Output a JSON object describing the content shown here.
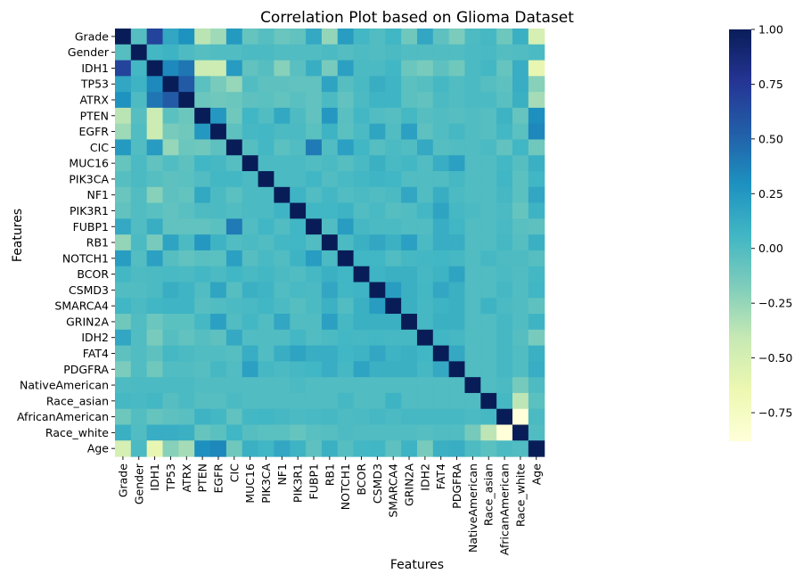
{
  "chart_data": {
    "type": "heatmap",
    "title": "Correlation Plot based on Glioma Dataset",
    "xlabel": "Features",
    "ylabel": "Features",
    "features": [
      "Grade",
      "Gender",
      "IDH1",
      "TP53",
      "ATRX",
      "PTEN",
      "EGFR",
      "CIC",
      "MUC16",
      "PIK3CA",
      "NF1",
      "PIK3R1",
      "FUBP1",
      "RB1",
      "NOTCH1",
      "BCOR",
      "CSMD3",
      "SMARCA4",
      "GRIN2A",
      "IDH2",
      "FAT4",
      "PDGFRA",
      "NativeAmerican",
      "Race_asian",
      "AfricanAmerican",
      "Race_white",
      "Age"
    ],
    "colorbar": {
      "min": -0.88,
      "max": 1.0,
      "ticks": [
        1.0,
        0.75,
        0.5,
        0.25,
        0.0,
        -0.25,
        -0.5,
        -0.75
      ],
      "tick_labels": [
        "1.00",
        "0.75",
        "0.50",
        "0.25",
        "0.00",
        "−0.25",
        "−0.50",
        "−0.75"
      ],
      "colormap": "YlGnBu"
    },
    "matrix": [
      [
        1.0,
        -0.02,
        0.68,
        0.16,
        0.28,
        -0.37,
        -0.28,
        0.24,
        -0.08,
        -0.02,
        -0.09,
        -0.06,
        0.14,
        -0.24,
        0.22,
        0.05,
        0.0,
        0.06,
        -0.12,
        0.16,
        -0.05,
        -0.16,
        0.01,
        0.04,
        -0.11,
        0.1,
        -0.5
      ],
      [
        -0.02,
        1.0,
        0.05,
        0.08,
        0.01,
        -0.02,
        0.0,
        0.0,
        0.02,
        0.02,
        0.0,
        0.0,
        0.0,
        0.02,
        -0.01,
        0.01,
        0.0,
        0.02,
        0.0,
        0.0,
        0.0,
        0.0,
        0.02,
        0.03,
        -0.01,
        0.0,
        0.02
      ],
      [
        0.68,
        0.05,
        1.0,
        0.33,
        0.42,
        -0.45,
        -0.45,
        0.23,
        -0.06,
        -0.02,
        -0.2,
        -0.03,
        0.11,
        -0.15,
        0.2,
        0.02,
        0.02,
        0.06,
        -0.1,
        -0.15,
        -0.05,
        -0.12,
        0.02,
        0.05,
        -0.08,
        0.12,
        -0.62
      ],
      [
        0.16,
        0.08,
        0.33,
        1.0,
        0.55,
        -0.04,
        -0.15,
        -0.25,
        0.0,
        -0.05,
        -0.05,
        -0.06,
        -0.06,
        0.18,
        -0.02,
        0.03,
        0.11,
        0.07,
        -0.04,
        -0.02,
        0.04,
        0.0,
        0.02,
        -0.02,
        -0.05,
        0.12,
        -0.2
      ],
      [
        0.28,
        0.01,
        0.42,
        0.55,
        1.0,
        -0.1,
        -0.12,
        -0.1,
        -0.05,
        -0.04,
        -0.07,
        -0.03,
        -0.06,
        0.02,
        -0.06,
        0.02,
        0.07,
        0.07,
        -0.04,
        -0.06,
        0.02,
        0.0,
        0.02,
        0.02,
        -0.03,
        0.1,
        -0.3
      ],
      [
        -0.37,
        -0.02,
        -0.45,
        -0.04,
        -0.1,
        1.0,
        0.25,
        -0.12,
        0.06,
        0.0,
        0.15,
        0.01,
        -0.06,
        0.25,
        -0.03,
        0.05,
        0.0,
        -0.02,
        0.04,
        -0.02,
        0.0,
        -0.02,
        0.0,
        -0.02,
        0.08,
        -0.08,
        0.3
      ],
      [
        -0.28,
        0.0,
        -0.45,
        -0.15,
        -0.12,
        0.25,
        1.0,
        -0.05,
        0.04,
        0.05,
        0.02,
        0.02,
        -0.04,
        0.08,
        -0.04,
        0.02,
        0.17,
        0.0,
        0.2,
        -0.05,
        0.0,
        0.04,
        0.0,
        -0.02,
        0.05,
        -0.04,
        0.34
      ],
      [
        0.24,
        0.0,
        0.23,
        -0.25,
        -0.1,
        -0.12,
        -0.05,
        1.0,
        -0.02,
        0.05,
        -0.04,
        0.0,
        0.4,
        0.0,
        0.2,
        0.06,
        -0.02,
        0.02,
        0.0,
        0.14,
        -0.02,
        0.0,
        0.0,
        0.02,
        -0.06,
        0.06,
        -0.12
      ],
      [
        -0.08,
        0.02,
        -0.06,
        0.0,
        -0.05,
        0.06,
        0.04,
        -0.02,
        1.0,
        0.02,
        0.02,
        0.02,
        0.0,
        0.02,
        -0.02,
        0.03,
        0.1,
        0.03,
        0.05,
        0.0,
        0.12,
        0.2,
        0.0,
        0.0,
        0.05,
        -0.02,
        0.1
      ],
      [
        -0.02,
        0.02,
        -0.02,
        -0.05,
        -0.04,
        0.0,
        0.05,
        0.05,
        0.02,
        1.0,
        0.02,
        0.02,
        0.06,
        0.0,
        0.03,
        0.05,
        0.07,
        0.06,
        0.0,
        0.0,
        0.0,
        0.04,
        0.0,
        0.0,
        0.06,
        -0.04,
        0.06
      ],
      [
        -0.09,
        0.0,
        -0.2,
        -0.05,
        -0.07,
        0.15,
        0.02,
        -0.04,
        0.02,
        0.02,
        1.0,
        0.07,
        0.0,
        0.05,
        0.0,
        0.02,
        0.0,
        0.02,
        0.16,
        0.0,
        0.11,
        0.02,
        0.0,
        0.0,
        0.04,
        -0.04,
        0.16
      ],
      [
        -0.06,
        0.0,
        -0.03,
        -0.06,
        -0.03,
        0.01,
        0.02,
        0.0,
        0.02,
        0.02,
        0.07,
        1.0,
        0.06,
        0.06,
        0.08,
        0.0,
        0.03,
        -0.02,
        0.0,
        0.05,
        0.18,
        0.04,
        0.02,
        0.0,
        0.02,
        -0.08,
        0.08
      ],
      [
        0.14,
        0.0,
        0.11,
        -0.06,
        -0.06,
        -0.06,
        -0.04,
        0.4,
        0.0,
        0.06,
        0.0,
        0.06,
        1.0,
        0.0,
        0.22,
        0.04,
        0.02,
        0.02,
        0.0,
        0.0,
        0.12,
        0.06,
        0.0,
        0.0,
        0.03,
        -0.03,
        -0.05
      ],
      [
        -0.24,
        0.02,
        -0.15,
        0.18,
        0.02,
        0.25,
        0.08,
        0.0,
        0.02,
        0.0,
        0.05,
        0.06,
        0.0,
        1.0,
        0.02,
        0.1,
        0.16,
        0.09,
        0.2,
        0.02,
        0.12,
        0.12,
        0.0,
        0.0,
        0.04,
        -0.02,
        0.1
      ],
      [
        0.22,
        -0.01,
        0.2,
        -0.02,
        -0.06,
        -0.03,
        -0.04,
        0.2,
        -0.02,
        0.03,
        0.0,
        0.08,
        0.22,
        0.02,
        1.0,
        0.06,
        0.06,
        0.0,
        0.04,
        0.05,
        0.06,
        0.04,
        0.0,
        0.04,
        0.01,
        0.01,
        -0.02
      ],
      [
        0.05,
        0.01,
        0.02,
        0.03,
        0.02,
        0.05,
        0.02,
        0.06,
        0.03,
        0.05,
        0.02,
        0.0,
        0.04,
        0.1,
        0.06,
        1.0,
        0.07,
        0.1,
        0.1,
        0.04,
        0.08,
        0.18,
        0.0,
        0.0,
        0.02,
        0.0,
        0.05
      ],
      [
        0.0,
        0.0,
        0.02,
        0.11,
        0.07,
        0.0,
        0.17,
        -0.02,
        0.1,
        0.07,
        0.0,
        0.03,
        0.02,
        0.16,
        0.06,
        0.07,
        1.0,
        0.22,
        0.1,
        0.05,
        0.16,
        0.1,
        0.0,
        0.0,
        0.04,
        0.0,
        0.06
      ],
      [
        0.06,
        0.02,
        0.06,
        0.07,
        0.07,
        -0.02,
        0.0,
        0.02,
        0.03,
        0.06,
        0.02,
        -0.02,
        0.02,
        0.09,
        0.0,
        0.1,
        0.22,
        1.0,
        0.1,
        0.04,
        0.08,
        0.1,
        0.0,
        0.08,
        0.02,
        0.0,
        -0.05
      ],
      [
        -0.12,
        0.0,
        -0.1,
        -0.04,
        -0.04,
        0.04,
        0.2,
        0.0,
        0.05,
        0.0,
        0.16,
        0.0,
        0.0,
        0.2,
        0.04,
        0.1,
        0.1,
        0.1,
        1.0,
        0.04,
        0.1,
        0.1,
        0.0,
        0.0,
        0.04,
        0.0,
        0.08
      ],
      [
        0.16,
        0.0,
        -0.15,
        -0.02,
        -0.06,
        -0.02,
        -0.05,
        0.14,
        0.0,
        0.0,
        0.0,
        0.05,
        0.0,
        0.02,
        0.05,
        0.04,
        0.05,
        0.04,
        0.04,
        1.0,
        0.06,
        0.04,
        0.0,
        0.0,
        0.04,
        -0.02,
        -0.15
      ],
      [
        -0.05,
        0.0,
        -0.05,
        0.04,
        0.02,
        0.0,
        0.0,
        -0.02,
        0.12,
        0.0,
        0.11,
        0.18,
        0.12,
        0.12,
        0.06,
        0.08,
        0.16,
        0.08,
        0.1,
        0.06,
        1.0,
        0.14,
        0.0,
        0.0,
        0.04,
        0.0,
        0.1
      ],
      [
        -0.16,
        0.0,
        -0.12,
        0.0,
        0.0,
        -0.02,
        0.04,
        0.0,
        0.2,
        0.04,
        0.02,
        0.04,
        0.06,
        0.12,
        0.04,
        0.18,
        0.1,
        0.1,
        0.1,
        0.04,
        0.14,
        1.0,
        0.0,
        0.0,
        0.04,
        0.0,
        0.12
      ],
      [
        0.01,
        0.02,
        0.02,
        0.02,
        0.02,
        0.0,
        0.0,
        0.0,
        0.0,
        0.0,
        0.0,
        0.02,
        0.0,
        0.0,
        0.0,
        0.0,
        0.0,
        0.0,
        0.0,
        0.0,
        0.0,
        0.0,
        1.0,
        0.0,
        0.02,
        -0.14,
        0.01
      ],
      [
        0.04,
        0.03,
        0.05,
        -0.02,
        0.02,
        -0.02,
        -0.02,
        0.02,
        0.0,
        0.0,
        0.0,
        0.0,
        0.0,
        0.0,
        0.04,
        0.0,
        0.0,
        0.08,
        0.0,
        0.0,
        0.0,
        0.0,
        0.0,
        1.0,
        0.04,
        -0.38,
        -0.04
      ],
      [
        -0.11,
        -0.01,
        -0.08,
        -0.05,
        -0.03,
        0.08,
        0.05,
        -0.06,
        0.05,
        0.06,
        0.04,
        0.02,
        0.03,
        0.04,
        0.01,
        0.02,
        0.04,
        0.02,
        0.04,
        0.04,
        0.04,
        0.04,
        0.02,
        0.04,
        1.0,
        -0.88,
        0.02
      ],
      [
        0.1,
        0.0,
        0.12,
        0.12,
        0.1,
        -0.08,
        -0.04,
        0.06,
        -0.02,
        -0.04,
        -0.04,
        -0.08,
        -0.03,
        -0.02,
        0.01,
        0.0,
        0.0,
        0.0,
        0.0,
        -0.02,
        0.0,
        0.0,
        -0.14,
        -0.38,
        -0.88,
        1.0,
        0.0
      ],
      [
        -0.5,
        0.02,
        -0.62,
        -0.2,
        -0.3,
        0.3,
        0.34,
        -0.12,
        0.1,
        0.06,
        0.16,
        0.08,
        -0.05,
        0.1,
        -0.02,
        0.05,
        0.06,
        -0.05,
        0.08,
        -0.15,
        0.1,
        0.12,
        0.01,
        -0.04,
        0.02,
        0.0,
        1.0
      ]
    ]
  }
}
